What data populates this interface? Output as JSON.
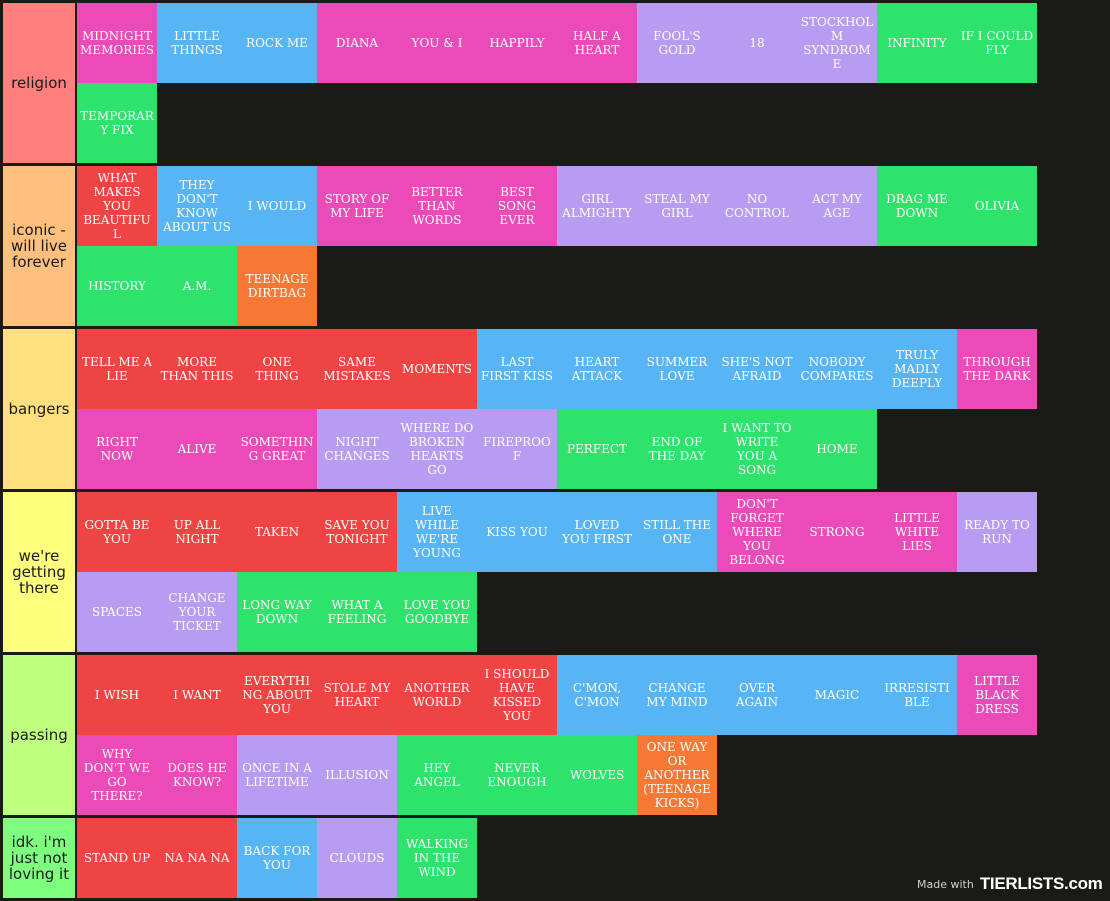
{
  "watermark": {
    "made_with": "Made with",
    "brand": "TIERLISTS.com"
  },
  "tiers": [
    {
      "label": "religion",
      "color": "#ff7f7f",
      "items": [
        {
          "text": "MIDNIGHT MEMORIES",
          "color": "pink"
        },
        {
          "text": "LITTLE THINGS",
          "color": "blue"
        },
        {
          "text": "ROCK ME",
          "color": "blue"
        },
        {
          "text": "DIANA",
          "color": "pink"
        },
        {
          "text": "YOU & I",
          "color": "pink"
        },
        {
          "text": "HAPPILY",
          "color": "pink"
        },
        {
          "text": "HALF A HEART",
          "color": "pink"
        },
        {
          "text": "FOOL'S GOLD",
          "color": "purple"
        },
        {
          "text": "18",
          "color": "purple"
        },
        {
          "text": "STOCKHOLM SYNDROME",
          "color": "purple"
        },
        {
          "text": "INFINITY",
          "color": "green"
        },
        {
          "text": "IF I COULD FLY",
          "color": "green"
        },
        {
          "text": "TEMPORARY FIX",
          "color": "green"
        }
      ]
    },
    {
      "label": "iconic - will live forever",
      "color": "#ffbf7f",
      "items": [
        {
          "text": "WHAT MAKES YOU BEAUTIFUL",
          "color": "red"
        },
        {
          "text": "THEY DON'T KNOW ABOUT US",
          "color": "blue"
        },
        {
          "text": "I WOULD",
          "color": "blue"
        },
        {
          "text": "STORY OF MY LIFE",
          "color": "pink"
        },
        {
          "text": "BETTER THAN WORDS",
          "color": "pink"
        },
        {
          "text": "BEST SONG EVER",
          "color": "pink"
        },
        {
          "text": "GIRL ALMIGHTY",
          "color": "purple"
        },
        {
          "text": "STEAL MY GIRL",
          "color": "purple"
        },
        {
          "text": "NO CONTROL",
          "color": "purple"
        },
        {
          "text": "ACT MY AGE",
          "color": "purple"
        },
        {
          "text": "DRAG ME DOWN",
          "color": "green"
        },
        {
          "text": "OLIVIA",
          "color": "green"
        },
        {
          "text": "HISTORY",
          "color": "green"
        },
        {
          "text": "A.M.",
          "color": "green"
        },
        {
          "text": "TEENAGE DIRTBAG",
          "color": "orange"
        }
      ]
    },
    {
      "label": "bangers",
      "color": "#ffdf7f",
      "items": [
        {
          "text": "TELL ME A LIE",
          "color": "red"
        },
        {
          "text": "MORE THAN THIS",
          "color": "red"
        },
        {
          "text": "ONE THING",
          "color": "red"
        },
        {
          "text": "SAME MISTAKES",
          "color": "red"
        },
        {
          "text": "MOMENTS",
          "color": "red"
        },
        {
          "text": "LAST FIRST KISS",
          "color": "blue"
        },
        {
          "text": "HEART ATTACK",
          "color": "blue"
        },
        {
          "text": "SUMMER LOVE",
          "color": "blue"
        },
        {
          "text": "SHE'S NOT AFRAID",
          "color": "blue"
        },
        {
          "text": "NOBODY COMPARES",
          "color": "blue"
        },
        {
          "text": "TRULY MADLY DEEPLY",
          "color": "blue"
        },
        {
          "text": "THROUGH THE DARK",
          "color": "pink"
        },
        {
          "text": "RIGHT NOW",
          "color": "pink"
        },
        {
          "text": "ALIVE",
          "color": "pink"
        },
        {
          "text": "SOMETHING GREAT",
          "color": "pink"
        },
        {
          "text": "NIGHT CHANGES",
          "color": "purple"
        },
        {
          "text": "WHERE DO BROKEN HEARTS GO",
          "color": "purple"
        },
        {
          "text": "FIREPROOF",
          "color": "purple"
        },
        {
          "text": "PERFECT",
          "color": "green"
        },
        {
          "text": "END OF THE DAY",
          "color": "green"
        },
        {
          "text": "I WANT TO WRITE YOU A SONG",
          "color": "green"
        },
        {
          "text": "HOME",
          "color": "green"
        }
      ]
    },
    {
      "label": "we're getting there",
      "color": "#ffff7f",
      "items": [
        {
          "text": "GOTTA BE YOU",
          "color": "red"
        },
        {
          "text": "UP ALL NIGHT",
          "color": "red"
        },
        {
          "text": "TAKEN",
          "color": "red"
        },
        {
          "text": "SAVE YOU TONIGHT",
          "color": "red"
        },
        {
          "text": "LIVE WHILE WE'RE YOUNG",
          "color": "blue"
        },
        {
          "text": "KISS YOU",
          "color": "blue"
        },
        {
          "text": "LOVED YOU FIRST",
          "color": "blue"
        },
        {
          "text": "STILL THE ONE",
          "color": "blue"
        },
        {
          "text": "DON'T FORGET WHERE YOU BELONG",
          "color": "pink"
        },
        {
          "text": "STRONG",
          "color": "pink"
        },
        {
          "text": "LITTLE WHITE LIES",
          "color": "pink"
        },
        {
          "text": "READY TO RUN",
          "color": "purple"
        },
        {
          "text": "SPACES",
          "color": "purple"
        },
        {
          "text": "CHANGE YOUR TICKET",
          "color": "purple"
        },
        {
          "text": "LONG WAY DOWN",
          "color": "green"
        },
        {
          "text": "WHAT A FEELING",
          "color": "green"
        },
        {
          "text": "LOVE YOU GOODBYE",
          "color": "green"
        }
      ]
    },
    {
      "label": "passing",
      "color": "#bfff7f",
      "items": [
        {
          "text": "I WISH",
          "color": "red"
        },
        {
          "text": "I WANT",
          "color": "red"
        },
        {
          "text": "EVERYTHING ABOUT YOU",
          "color": "red"
        },
        {
          "text": "STOLE MY HEART",
          "color": "red"
        },
        {
          "text": "ANOTHER WORLD",
          "color": "red"
        },
        {
          "text": "I SHOULD HAVE KISSED YOU",
          "color": "red"
        },
        {
          "text": "C'MON, C'MON",
          "color": "blue"
        },
        {
          "text": "CHANGE MY MIND",
          "color": "blue"
        },
        {
          "text": "OVER AGAIN",
          "color": "blue"
        },
        {
          "text": "MAGIC",
          "color": "blue"
        },
        {
          "text": "IRRESISTIBLE",
          "color": "blue"
        },
        {
          "text": "LITTLE BLACK DRESS",
          "color": "pink"
        },
        {
          "text": "WHY DON'T WE GO THERE?",
          "color": "pink"
        },
        {
          "text": "DOES HE KNOW?",
          "color": "pink"
        },
        {
          "text": "ONCE IN A LIFETIME",
          "color": "purple"
        },
        {
          "text": "ILLUSION",
          "color": "purple"
        },
        {
          "text": "HEY ANGEL",
          "color": "green"
        },
        {
          "text": "NEVER ENOUGH",
          "color": "green"
        },
        {
          "text": "WOLVES",
          "color": "green"
        },
        {
          "text": "ONE WAY OR ANOTHER (TEENAGE KICKS)",
          "color": "orange"
        }
      ]
    },
    {
      "label": "idk. i'm just not loving it",
      "color": "#7fff7f",
      "items": [
        {
          "text": "STAND UP",
          "color": "red"
        },
        {
          "text": "NA NA NA",
          "color": "red"
        },
        {
          "text": "BACK FOR YOU",
          "color": "blue"
        },
        {
          "text": "CLOUDS",
          "color": "purple"
        },
        {
          "text": "WALKING IN THE WIND",
          "color": "green"
        }
      ]
    }
  ]
}
